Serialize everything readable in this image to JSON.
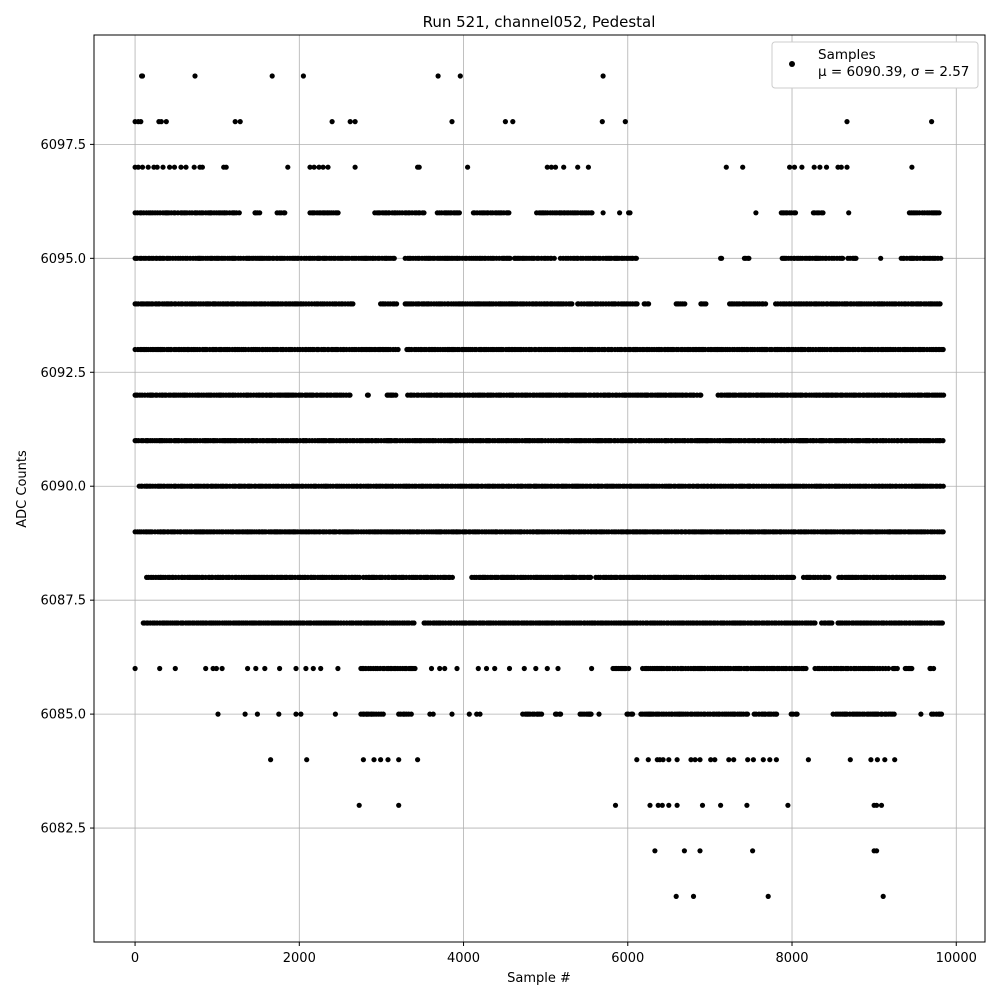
{
  "chart_data": {
    "type": "scatter",
    "title": "Run 521, channel052, Pedestal",
    "xlabel": "Sample #",
    "ylabel": "ADC Counts",
    "xlim": [
      -500,
      10350
    ],
    "ylim": [
      6080.0,
      6099.9
    ],
    "xticks": [
      0,
      2000,
      4000,
      6000,
      8000,
      10000
    ],
    "xtick_labels": [
      "0",
      "2000",
      "4000",
      "6000",
      "8000",
      "10000"
    ],
    "yticks": [
      6082.5,
      6085.0,
      6087.5,
      6090.0,
      6092.5,
      6095.0,
      6097.5
    ],
    "ytick_labels": [
      "6082.5",
      "6085.0",
      "6087.5",
      "6090.0",
      "6092.5",
      "6095.0",
      "6097.5"
    ],
    "grid": true,
    "legend": {
      "placement": "top-right",
      "entry": "Samples",
      "stats_line": "μ = 6090.39, σ = 2.57"
    },
    "marker_color": "#000000",
    "sample_range": [
      0,
      9850
    ],
    "series": [
      {
        "name": "Samples",
        "points": [
          [
            80,
            6099
          ],
          [
            90,
            6099
          ],
          [
            730,
            6099
          ],
          [
            1670,
            6099
          ],
          [
            2050,
            6099
          ],
          [
            3690,
            6099
          ],
          [
            3960,
            6099
          ],
          [
            5700,
            6099
          ],
          [
            0,
            6098
          ],
          [
            40,
            6098
          ],
          [
            70,
            6098
          ],
          [
            290,
            6098
          ],
          [
            320,
            6098
          ],
          [
            380,
            6098
          ],
          [
            1220,
            6098
          ],
          [
            1280,
            6098
          ],
          [
            2400,
            6098
          ],
          [
            2620,
            6098
          ],
          [
            2680,
            6098
          ],
          [
            3860,
            6098
          ],
          [
            4510,
            6098
          ],
          [
            4600,
            6098
          ],
          [
            5690,
            6098
          ],
          [
            5970,
            6098
          ],
          [
            8670,
            6098
          ],
          [
            9700,
            6098
          ],
          [
            0,
            6097
          ],
          [
            40,
            6097
          ],
          [
            90,
            6097
          ],
          [
            160,
            6097
          ],
          [
            230,
            6097
          ],
          [
            270,
            6097
          ],
          [
            340,
            6097
          ],
          [
            420,
            6097
          ],
          [
            480,
            6097
          ],
          [
            560,
            6097
          ],
          [
            620,
            6097
          ],
          [
            720,
            6097
          ],
          [
            790,
            6097
          ],
          [
            820,
            6097
          ],
          [
            1080,
            6097
          ],
          [
            1110,
            6097
          ],
          [
            1860,
            6097
          ],
          [
            2130,
            6097
          ],
          [
            2180,
            6097
          ],
          [
            2240,
            6097
          ],
          [
            2290,
            6097
          ],
          [
            2350,
            6097
          ],
          [
            2680,
            6097
          ],
          [
            3440,
            6097
          ],
          [
            3460,
            6097
          ],
          [
            4050,
            6097
          ],
          [
            5020,
            6097
          ],
          [
            5070,
            6097
          ],
          [
            5120,
            6097
          ],
          [
            5220,
            6097
          ],
          [
            5390,
            6097
          ],
          [
            5520,
            6097
          ],
          [
            7200,
            6097
          ],
          [
            7400,
            6097
          ],
          [
            7970,
            6097
          ],
          [
            8030,
            6097
          ],
          [
            8120,
            6097
          ],
          [
            8270,
            6097
          ],
          [
            8340,
            6097
          ],
          [
            8420,
            6097
          ],
          [
            8560,
            6097
          ],
          [
            8600,
            6097
          ],
          [
            8670,
            6097
          ],
          [
            9460,
            6097
          ]
        ],
        "dense_levels": [
          {
            "y": 6096,
            "segments": [
              [
                0,
                1280
              ],
              [
                1460,
                1520
              ],
              [
                1730,
                1830
              ],
              [
                2130,
                2480
              ],
              [
                2920,
                3530
              ],
              [
                3680,
                3960
              ],
              [
                4120,
                4560
              ],
              [
                4890,
                5580
              ],
              [
                5700,
                5720
              ],
              [
                5900,
                5930
              ],
              [
                6010,
                6030
              ],
              [
                7560,
                7580
              ],
              [
                7870,
                8050
              ],
              [
                8260,
                8400
              ],
              [
                8690,
                8700
              ],
              [
                9430,
                9800
              ]
            ]
          },
          {
            "y": 6095,
            "segments": [
              [
                0,
                3180
              ],
              [
                3290,
                4580
              ],
              [
                4620,
                5130
              ],
              [
                5180,
                6130
              ],
              [
                7130,
                7160
              ],
              [
                7420,
                7480
              ],
              [
                7880,
                8620
              ],
              [
                8680,
                8780
              ],
              [
                9080,
                9100
              ],
              [
                9330,
                9830
              ]
            ]
          },
          {
            "y": 6094,
            "segments": [
              [
                0,
                2680
              ],
              [
                2990,
                3200
              ],
              [
                3290,
                5330
              ],
              [
                5390,
                6130
              ],
              [
                6200,
                6270
              ],
              [
                6590,
                6700
              ],
              [
                6890,
                6980
              ],
              [
                7240,
                7680
              ],
              [
                7800,
                9830
              ]
            ]
          },
          {
            "y": 6093,
            "segments": [
              [
                0,
                3210
              ],
              [
                3310,
                9850
              ]
            ]
          },
          {
            "y": 6092,
            "segments": [
              [
                0,
                2620
              ],
              [
                2830,
                2860
              ],
              [
                3070,
                3180
              ],
              [
                3320,
                6890
              ],
              [
                7100,
                9850
              ]
            ]
          },
          {
            "y": 6091,
            "segments": [
              [
                0,
                9850
              ]
            ]
          },
          {
            "y": 6090,
            "segments": [
              [
                50,
                9850
              ]
            ]
          },
          {
            "y": 6089,
            "segments": [
              [
                0,
                9850
              ]
            ]
          },
          {
            "y": 6088,
            "segments": [
              [
                140,
                2750
              ],
              [
                2780,
                3880
              ],
              [
                4100,
                5560
              ],
              [
                5610,
                6120
              ],
              [
                6120,
                8020
              ],
              [
                8140,
                8460
              ],
              [
                8570,
                9850
              ]
            ]
          },
          {
            "y": 6087,
            "segments": [
              [
                100,
                3400
              ],
              [
                3520,
                8300
              ],
              [
                8360,
                8500
              ],
              [
                8560,
                9850
              ]
            ]
          },
          {
            "y": 6086,
            "segments": [
              [
                2750,
                3440
              ],
              [
                5820,
                6020
              ],
              [
                6180,
                8180
              ],
              [
                8280,
                9180
              ],
              [
                9230,
                9300
              ],
              [
                9380,
                9460
              ],
              [
                9680,
                9750
              ]
            ]
          },
          {
            "y": 6085,
            "segments": [
              [
                2750,
                3030
              ],
              [
                3210,
                3380
              ],
              [
                4720,
                4960
              ],
              [
                5120,
                5200
              ],
              [
                5420,
                5560
              ],
              [
                5990,
                6080
              ],
              [
                6160,
                7470
              ],
              [
                7540,
                7830
              ],
              [
                7990,
                8080
              ],
              [
                8500,
                9260
              ],
              [
                9700,
                9830
              ]
            ]
          }
        ],
        "sparse_points": [
          [
            0,
            6086
          ],
          [
            300,
            6086
          ],
          [
            490,
            6086
          ],
          [
            860,
            6086
          ],
          [
            950,
            6086
          ],
          [
            990,
            6086
          ],
          [
            1060,
            6086
          ],
          [
            1370,
            6086
          ],
          [
            1470,
            6086
          ],
          [
            1580,
            6086
          ],
          [
            1760,
            6086
          ],
          [
            1960,
            6086
          ],
          [
            2080,
            6086
          ],
          [
            2170,
            6086
          ],
          [
            2260,
            6086
          ],
          [
            2470,
            6086
          ],
          [
            3610,
            6086
          ],
          [
            3710,
            6086
          ],
          [
            3770,
            6086
          ],
          [
            3920,
            6086
          ],
          [
            4180,
            6086
          ],
          [
            4280,
            6086
          ],
          [
            4380,
            6086
          ],
          [
            4560,
            6086
          ],
          [
            4740,
            6086
          ],
          [
            4880,
            6086
          ],
          [
            5020,
            6086
          ],
          [
            5150,
            6086
          ],
          [
            5560,
            6086
          ],
          [
            1010,
            6085
          ],
          [
            1340,
            6085
          ],
          [
            1490,
            6085
          ],
          [
            1750,
            6085
          ],
          [
            1960,
            6085
          ],
          [
            2020,
            6085
          ],
          [
            2440,
            6085
          ],
          [
            3590,
            6085
          ],
          [
            3630,
            6085
          ],
          [
            3860,
            6085
          ],
          [
            4070,
            6085
          ],
          [
            4160,
            6085
          ],
          [
            4200,
            6085
          ],
          [
            5650,
            6085
          ],
          [
            9570,
            6085
          ],
          [
            1650,
            6084
          ],
          [
            2090,
            6084
          ],
          [
            2780,
            6084
          ],
          [
            2910,
            6084
          ],
          [
            2990,
            6084
          ],
          [
            3080,
            6084
          ],
          [
            3210,
            6084
          ],
          [
            3440,
            6084
          ],
          [
            6110,
            6084
          ],
          [
            6250,
            6084
          ],
          [
            6360,
            6084
          ],
          [
            6390,
            6084
          ],
          [
            6430,
            6084
          ],
          [
            6500,
            6084
          ],
          [
            6600,
            6084
          ],
          [
            6770,
            6084
          ],
          [
            6820,
            6084
          ],
          [
            6880,
            6084
          ],
          [
            7010,
            6084
          ],
          [
            7060,
            6084
          ],
          [
            7230,
            6084
          ],
          [
            7290,
            6084
          ],
          [
            7460,
            6084
          ],
          [
            7530,
            6084
          ],
          [
            7650,
            6084
          ],
          [
            7730,
            6084
          ],
          [
            7810,
            6084
          ],
          [
            8200,
            6084
          ],
          [
            8710,
            6084
          ],
          [
            8960,
            6084
          ],
          [
            9040,
            6084
          ],
          [
            9130,
            6084
          ],
          [
            9250,
            6084
          ],
          [
            2730,
            6083
          ],
          [
            3210,
            6083
          ],
          [
            5850,
            6083
          ],
          [
            6270,
            6083
          ],
          [
            6370,
            6083
          ],
          [
            6420,
            6083
          ],
          [
            6500,
            6083
          ],
          [
            6600,
            6083
          ],
          [
            6910,
            6083
          ],
          [
            7130,
            6083
          ],
          [
            7450,
            6083
          ],
          [
            7950,
            6083
          ],
          [
            9000,
            6083
          ],
          [
            9030,
            6083
          ],
          [
            9090,
            6083
          ],
          [
            6330,
            6082
          ],
          [
            6690,
            6082
          ],
          [
            6880,
            6082
          ],
          [
            7520,
            6082
          ],
          [
            9000,
            6082
          ],
          [
            9030,
            6082
          ],
          [
            6590,
            6081
          ],
          [
            6800,
            6081
          ],
          [
            7710,
            6081
          ],
          [
            9110,
            6081
          ]
        ]
      }
    ]
  }
}
